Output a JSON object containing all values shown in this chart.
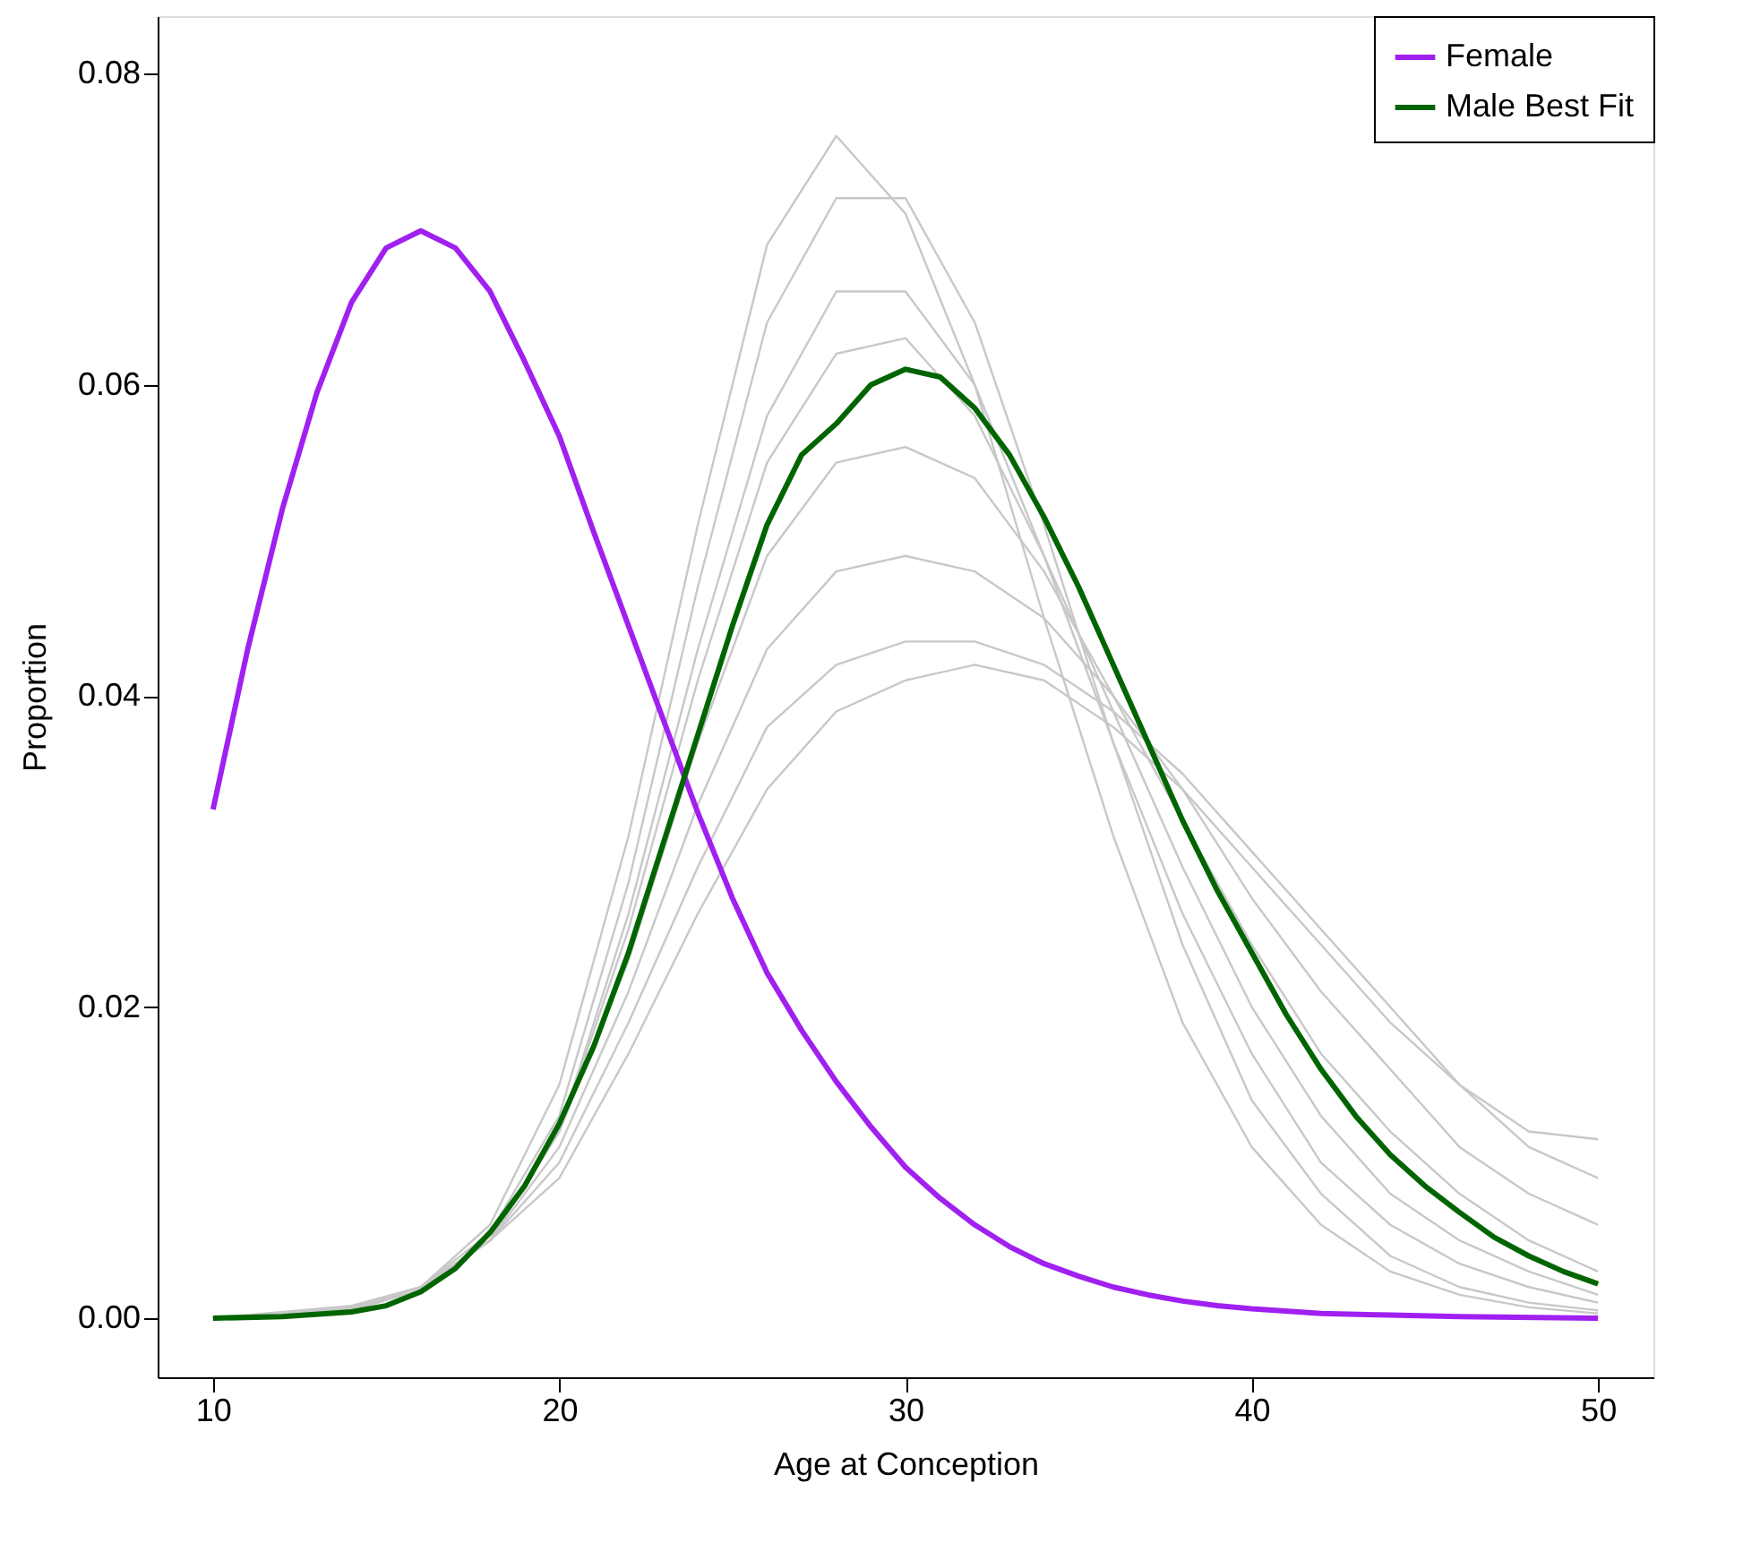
{
  "chart_data": {
    "type": "line",
    "xlabel": "Age at Conception",
    "ylabel": "Proportion",
    "xlim": [
      8.4,
      51.6
    ],
    "ylim": [
      -0.0038,
      0.0837
    ],
    "xticks": [
      10,
      20,
      30,
      40,
      50
    ],
    "yticks": [
      {
        "value": 0,
        "label": "0.00"
      },
      {
        "value": 0.02,
        "label": "0.02"
      },
      {
        "value": 0.04,
        "label": "0.04"
      },
      {
        "value": 0.06,
        "label": "0.06"
      },
      {
        "value": 0.08,
        "label": "0.08"
      }
    ],
    "grid": false,
    "legend": "top right",
    "marker": "none",
    "line_style": "solid",
    "series": [
      {
        "color": "#c8c8c8",
        "x": [
          10,
          14,
          16,
          18,
          20,
          22,
          24,
          26,
          28,
          30,
          32,
          34,
          36,
          38,
          40,
          42,
          44,
          46,
          48,
          50
        ],
        "values": [
          0,
          0.0005,
          0.002,
          0.006,
          0.015,
          0.031,
          0.051,
          0.069,
          0.076,
          0.071,
          0.06,
          0.045,
          0.031,
          0.019,
          0.011,
          0.006,
          0.003,
          0.0015,
          0.0007,
          0.0003
        ]
      },
      {
        "color": "#c8c8c8",
        "x": [
          10,
          14,
          16,
          18,
          20,
          22,
          24,
          26,
          28,
          30,
          32,
          34,
          36,
          38,
          40,
          42,
          44,
          46,
          48,
          50
        ],
        "values": [
          0,
          0.0005,
          0.002,
          0.0055,
          0.013,
          0.028,
          0.047,
          0.064,
          0.072,
          0.072,
          0.064,
          0.051,
          0.037,
          0.024,
          0.014,
          0.008,
          0.004,
          0.002,
          0.001,
          0.0005
        ]
      },
      {
        "color": "#c8c8c8",
        "x": [
          10,
          14,
          16,
          18,
          20,
          22,
          24,
          26,
          28,
          30,
          32,
          34,
          36,
          38,
          40,
          42,
          44,
          46,
          48,
          50
        ],
        "values": [
          0,
          0.0005,
          0.0018,
          0.005,
          0.012,
          0.026,
          0.043,
          0.058,
          0.066,
          0.066,
          0.06,
          0.049,
          0.037,
          0.026,
          0.017,
          0.01,
          0.006,
          0.0035,
          0.002,
          0.001
        ]
      },
      {
        "color": "#c8c8c8",
        "x": [
          10,
          14,
          16,
          18,
          20,
          22,
          24,
          26,
          28,
          30,
          32,
          34,
          36,
          38,
          40,
          42,
          44,
          46,
          48,
          50
        ],
        "values": [
          0,
          0.0006,
          0.002,
          0.005,
          0.012,
          0.025,
          0.041,
          0.055,
          0.062,
          0.063,
          0.058,
          0.049,
          0.039,
          0.029,
          0.02,
          0.013,
          0.008,
          0.005,
          0.003,
          0.0015
        ]
      },
      {
        "color": "#c8c8c8",
        "x": [
          10,
          14,
          16,
          18,
          20,
          22,
          24,
          26,
          28,
          30,
          32,
          34,
          36,
          38,
          40,
          42,
          44,
          46,
          48,
          50
        ],
        "values": [
          0,
          0.0006,
          0.002,
          0.005,
          0.012,
          0.023,
          0.037,
          0.049,
          0.055,
          0.056,
          0.054,
          0.048,
          0.04,
          0.032,
          0.024,
          0.017,
          0.012,
          0.008,
          0.005,
          0.003
        ]
      },
      {
        "color": "#c8c8c8",
        "x": [
          10,
          14,
          16,
          18,
          20,
          22,
          24,
          26,
          28,
          30,
          32,
          34,
          36,
          38,
          40,
          42,
          44,
          46,
          48,
          50
        ],
        "values": [
          0,
          0.0006,
          0.002,
          0.005,
          0.011,
          0.021,
          0.033,
          0.043,
          0.048,
          0.049,
          0.048,
          0.045,
          0.04,
          0.034,
          0.027,
          0.021,
          0.016,
          0.011,
          0.008,
          0.006
        ]
      },
      {
        "color": "#c8c8c8",
        "x": [
          10,
          14,
          16,
          18,
          20,
          22,
          24,
          26,
          28,
          30,
          32,
          34,
          36,
          38,
          40,
          42,
          44,
          46,
          48,
          50
        ],
        "values": [
          0,
          0.0007,
          0.002,
          0.005,
          0.01,
          0.019,
          0.029,
          0.038,
          0.042,
          0.0435,
          0.0435,
          0.042,
          0.039,
          0.035,
          0.03,
          0.025,
          0.02,
          0.015,
          0.011,
          0.009
        ]
      },
      {
        "color": "#c8c8c8",
        "x": [
          10,
          14,
          16,
          18,
          20,
          22,
          24,
          26,
          28,
          30,
          32,
          34,
          36,
          38,
          40,
          42,
          44,
          46,
          48,
          50
        ],
        "values": [
          0,
          0.0008,
          0.002,
          0.005,
          0.009,
          0.017,
          0.026,
          0.034,
          0.039,
          0.041,
          0.042,
          0.041,
          0.038,
          0.034,
          0.029,
          0.024,
          0.019,
          0.015,
          0.012,
          0.0115
        ]
      },
      {
        "name": "Female",
        "color": "#a020f0",
        "x": [
          10,
          11,
          12,
          13,
          14,
          15,
          16,
          17,
          18,
          19,
          20,
          21,
          22,
          23,
          24,
          25,
          26,
          27,
          28,
          29,
          30,
          31,
          32,
          33,
          34,
          35,
          36,
          37,
          38,
          39,
          40,
          42,
          44,
          46,
          50
        ],
        "values": [
          0.0327,
          0.043,
          0.052,
          0.0595,
          0.0653,
          0.0688,
          0.0699,
          0.0688,
          0.066,
          0.0615,
          0.0567,
          0.0505,
          0.0445,
          0.0385,
          0.0325,
          0.027,
          0.0222,
          0.0185,
          0.0152,
          0.0123,
          0.0097,
          0.0077,
          0.006,
          0.0046,
          0.0035,
          0.0027,
          0.002,
          0.0015,
          0.0011,
          0.0008,
          0.0006,
          0.0003,
          0.0002,
          0.0001,
          0
        ]
      },
      {
        "name": "Male Best Fit",
        "color": "#006400",
        "x": [
          10,
          12,
          14,
          15,
          16,
          17,
          18,
          19,
          20,
          21,
          22,
          23,
          24,
          25,
          26,
          27,
          28,
          29,
          30,
          31,
          32,
          33,
          34,
          35,
          36,
          37,
          38,
          39,
          40,
          41,
          42,
          43,
          44,
          45,
          46,
          47,
          48,
          49,
          50
        ],
        "values": [
          0,
          0.0001,
          0.0004,
          0.0008,
          0.0017,
          0.0032,
          0.0055,
          0.0085,
          0.0125,
          0.0175,
          0.0235,
          0.0305,
          0.0375,
          0.0445,
          0.051,
          0.0555,
          0.0575,
          0.06,
          0.061,
          0.0605,
          0.0585,
          0.0555,
          0.0515,
          0.047,
          0.042,
          0.037,
          0.032,
          0.0275,
          0.0235,
          0.0195,
          0.016,
          0.013,
          0.0105,
          0.0085,
          0.0068,
          0.0052,
          0.004,
          0.003,
          0.0022
        ]
      }
    ]
  }
}
